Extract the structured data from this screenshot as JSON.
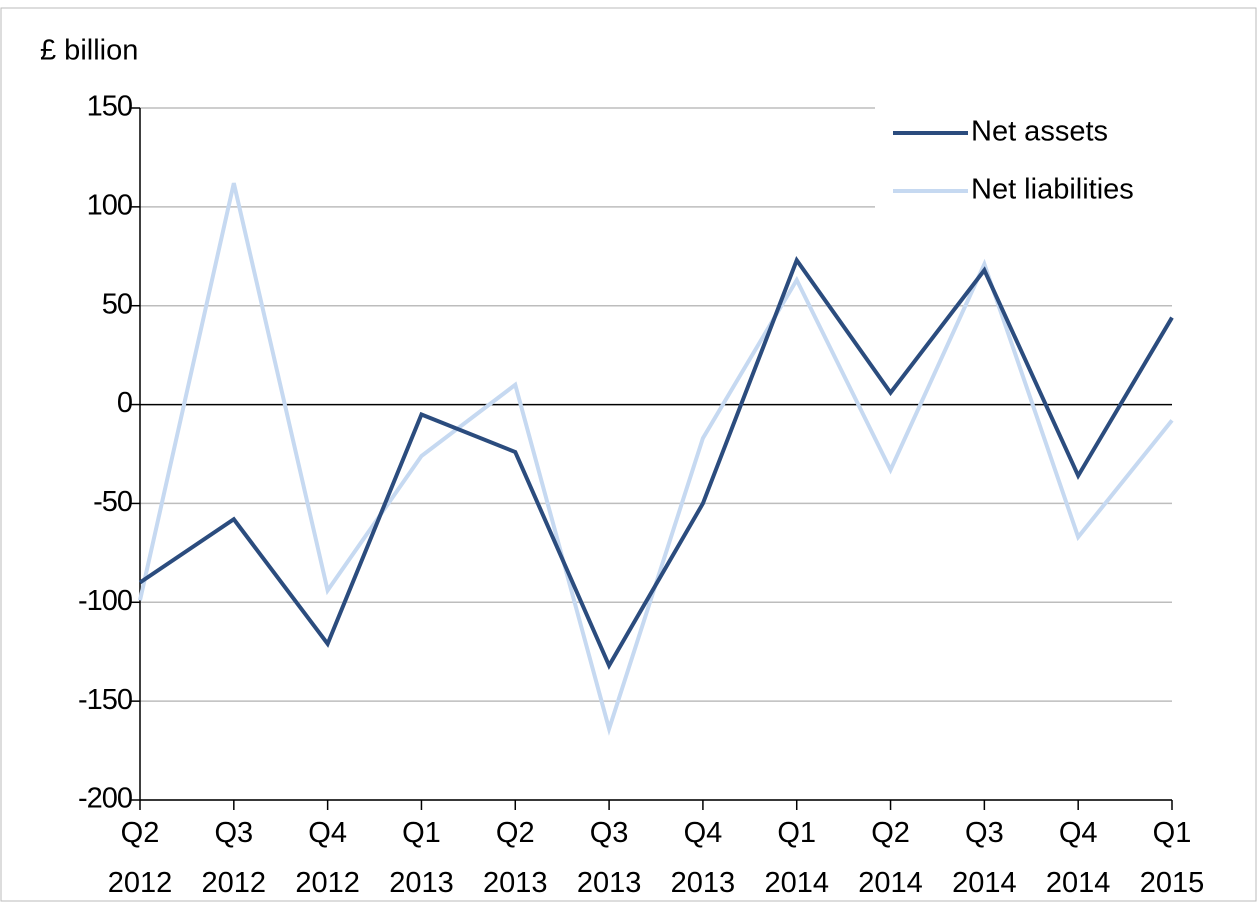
{
  "chart_data": {
    "type": "line",
    "y_axis_label": "£ billion",
    "categories": [
      [
        "Q2",
        "2012"
      ],
      [
        "Q3",
        "2012"
      ],
      [
        "Q4",
        "2012"
      ],
      [
        "Q1",
        "2013"
      ],
      [
        "Q2",
        "2013"
      ],
      [
        "Q3",
        "2013"
      ],
      [
        "Q4",
        "2013"
      ],
      [
        "Q1",
        "2014"
      ],
      [
        "Q2",
        "2014"
      ],
      [
        "Q3",
        "2014"
      ],
      [
        "Q4",
        "2014"
      ],
      [
        "Q1",
        "2015"
      ]
    ],
    "series": [
      {
        "name": "Net assets",
        "color": "#2b4c7e",
        "values": [
          -90,
          -58,
          -121,
          -5,
          -24,
          -132,
          -50,
          73,
          6,
          68,
          -36,
          44
        ]
      },
      {
        "name": "Net liabilities",
        "color": "#c6d9f1",
        "values": [
          -99,
          112,
          -94,
          -26,
          10,
          -164,
          -17,
          63,
          -33,
          71,
          -67,
          -8
        ]
      }
    ],
    "ylim": [
      -200,
      150
    ],
    "yticks": [
      -200,
      -150,
      -100,
      -50,
      0,
      50,
      100,
      150
    ],
    "grid": true,
    "legend": "top-right"
  }
}
